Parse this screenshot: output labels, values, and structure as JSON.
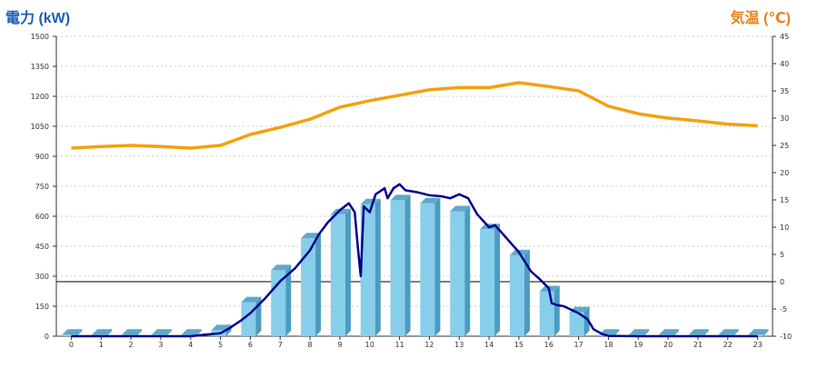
{
  "chart_data": {
    "type": "bar",
    "left_axis_label": "電力 (kW)",
    "right_axis_label": "気温 (℃)",
    "categories": [
      "0",
      "1",
      "2",
      "3",
      "4",
      "5",
      "6",
      "7",
      "8",
      "9",
      "10",
      "11",
      "12",
      "13",
      "14",
      "15",
      "16",
      "17",
      "18",
      "19",
      "20",
      "21",
      "22",
      "23"
    ],
    "left_ticks": [
      "0",
      "150",
      "300",
      "450",
      "600",
      "750",
      "900",
      "1050",
      "1200",
      "1350",
      "1500"
    ],
    "right_ticks": [
      "-10",
      "-5",
      "0",
      "5",
      "10",
      "15",
      "20",
      "25",
      "30",
      "35",
      "40",
      "45"
    ],
    "ylim_left": [
      0,
      1500
    ],
    "ylim_right": [
      -10,
      45
    ],
    "grid": true,
    "colors": {
      "bar_face": "#87ceeb",
      "bar_side": "#4a9cc0",
      "bar_top": "#5fa8cc",
      "power_line": "#00008b",
      "temp_line": "#f5a00e",
      "grid": "#bbbbbb"
    },
    "series": [
      {
        "kind": "bars",
        "axis": "left",
        "values": [
          8,
          8,
          8,
          8,
          8,
          30,
          170,
          330,
          490,
          610,
          660,
          680,
          665,
          625,
          535,
          405,
          225,
          120,
          8,
          8,
          8,
          8,
          8,
          8
        ]
      },
      {
        "kind": "line",
        "axis": "left",
        "points": [
          [
            0,
            0
          ],
          [
            1,
            0
          ],
          [
            2,
            0
          ],
          [
            3,
            0
          ],
          [
            4,
            0
          ],
          [
            4.5,
            8
          ],
          [
            5,
            15
          ],
          [
            5.3,
            40
          ],
          [
            5.7,
            80
          ],
          [
            6,
            115
          ],
          [
            6.5,
            190
          ],
          [
            7,
            275
          ],
          [
            7.5,
            340
          ],
          [
            8,
            430
          ],
          [
            8.3,
            510
          ],
          [
            8.6,
            570
          ],
          [
            9,
            630
          ],
          [
            9.3,
            665
          ],
          [
            9.5,
            620
          ],
          [
            9.6,
            450
          ],
          [
            9.7,
            300
          ],
          [
            9.8,
            650
          ],
          [
            10,
            620
          ],
          [
            10.2,
            710
          ],
          [
            10.5,
            740
          ],
          [
            10.6,
            690
          ],
          [
            10.8,
            740
          ],
          [
            11,
            760
          ],
          [
            11.2,
            730
          ],
          [
            11.6,
            720
          ],
          [
            12,
            705
          ],
          [
            12.4,
            700
          ],
          [
            12.7,
            690
          ],
          [
            13,
            710
          ],
          [
            13.3,
            690
          ],
          [
            13.6,
            610
          ],
          [
            14,
            545
          ],
          [
            14.2,
            555
          ],
          [
            14.5,
            505
          ],
          [
            15,
            420
          ],
          [
            15.4,
            325
          ],
          [
            15.7,
            285
          ],
          [
            16,
            240
          ],
          [
            16.1,
            165
          ],
          [
            16.3,
            155
          ],
          [
            16.5,
            150
          ],
          [
            17,
            115
          ],
          [
            17.3,
            85
          ],
          [
            17.5,
            35
          ],
          [
            17.8,
            10
          ],
          [
            18,
            2
          ],
          [
            19,
            0
          ],
          [
            20,
            0
          ],
          [
            21,
            0
          ],
          [
            22,
            0
          ],
          [
            23,
            0
          ]
        ]
      },
      {
        "kind": "line",
        "axis": "right",
        "values": [
          24.5,
          24.8,
          25.0,
          24.8,
          24.5,
          25.0,
          27.0,
          28.3,
          29.8,
          32.0,
          33.2,
          34.2,
          35.2,
          35.6,
          35.6,
          36.5,
          35.8,
          35.0,
          32.2,
          30.8,
          30.0,
          29.5,
          28.9,
          28.6
        ]
      }
    ]
  }
}
